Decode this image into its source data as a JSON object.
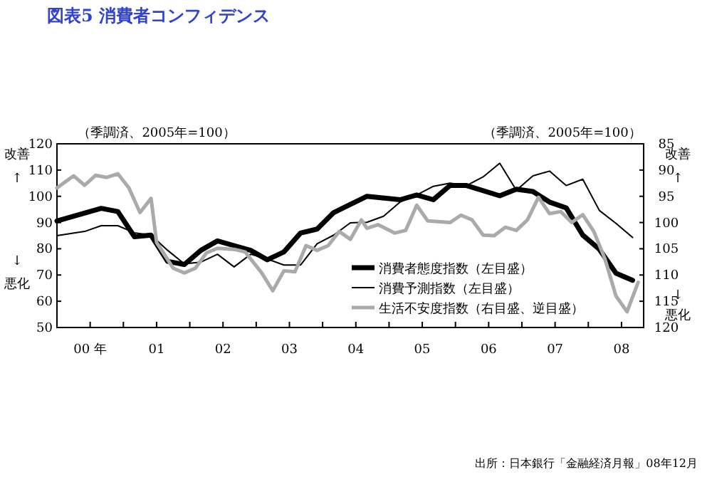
{
  "chart_data": {
    "type": "line",
    "title": "図表5 消費者コンフィデンス",
    "xlim": [
      "2000-01",
      "2008-11"
    ],
    "xticks": [
      {
        "value": "2000-07",
        "label": "00 年"
      },
      {
        "value": "2001-01",
        "label": null
      },
      {
        "value": "2001-07",
        "label": "01"
      },
      {
        "value": "2002-01",
        "label": null
      },
      {
        "value": "2002-07",
        "label": "02"
      },
      {
        "value": "2003-01",
        "label": null
      },
      {
        "value": "2003-07",
        "label": "03"
      },
      {
        "value": "2004-01",
        "label": null
      },
      {
        "value": "2004-07",
        "label": "04"
      },
      {
        "value": "2005-01",
        "label": null
      },
      {
        "value": "2005-07",
        "label": "05"
      },
      {
        "value": "2006-01",
        "label": null
      },
      {
        "value": "2006-07",
        "label": "06"
      },
      {
        "value": "2007-01",
        "label": null
      },
      {
        "value": "2007-07",
        "label": "07"
      },
      {
        "value": "2008-01",
        "label": null
      },
      {
        "value": "2008-07",
        "label": "08"
      }
    ],
    "ylim": [
      50,
      120
    ],
    "yticks": [
      50,
      60,
      70,
      80,
      90,
      100,
      110,
      120
    ],
    "y2lim": [
      120,
      85
    ],
    "y2ticks": [
      85,
      90,
      95,
      100,
      105,
      110,
      115,
      120
    ],
    "legend": "bottom right",
    "grid": false,
    "annotations": [
      "（季調済、2005年=100）",
      "（季調済、2005年=100）",
      "改善",
      "↑",
      "↓",
      "悪化",
      "改善",
      "↑",
      "↓",
      "悪化",
      "出所：日本銀行「金融経済月報」08年12月"
    ],
    "series": [
      {
        "name": "消費者態度指数（左目盛）",
        "color": "#000000",
        "x": [
          "2000-01",
          "2000-09",
          "2000-12",
          "2001-03",
          "2001-06",
          "2001-09",
          "2001-12",
          "2002-03",
          "2002-06",
          "2002-09",
          "2002-12",
          "2003-03",
          "2003-06",
          "2003-09",
          "2003-12",
          "2004-03",
          "2004-06",
          "2004-09",
          "2005-03",
          "2005-06",
          "2005-09",
          "2005-12",
          "2006-03",
          "2006-09",
          "2006-12",
          "2007-03",
          "2007-06",
          "2007-09",
          "2007-12",
          "2008-03",
          "2008-06",
          "2008-09"
        ],
        "values": [
          90.6,
          95.4,
          94.2,
          84.6,
          85.2,
          75.2,
          74,
          79.4,
          83,
          81.2,
          79.4,
          75.8,
          78.8,
          86,
          87.5,
          93.8,
          96.9,
          100,
          98.7,
          100.5,
          98.7,
          104.1,
          104.1,
          100.2,
          102.7,
          101.8,
          97.8,
          95.6,
          85.2,
          79.8,
          70.7,
          68
        ]
      },
      {
        "name": "消費予測指数（左目盛）",
        "color": "#000000",
        "x": [
          "2000-01",
          "2000-06",
          "2000-09",
          "2000-12",
          "2001-03",
          "2001-06",
          "2001-09",
          "2001-12",
          "2002-03",
          "2002-06",
          "2002-09",
          "2002-12",
          "2003-03",
          "2003-06",
          "2003-09",
          "2003-12",
          "2004-03",
          "2004-06",
          "2004-09",
          "2004-12",
          "2005-03",
          "2005-06",
          "2005-09",
          "2005-12",
          "2006-03",
          "2006-06",
          "2006-09",
          "2006-12",
          "2007-03",
          "2007-06",
          "2007-09",
          "2007-12",
          "2008-03",
          "2008-06",
          "2008-09"
        ],
        "values": [
          85,
          86.6,
          88.8,
          88.8,
          86.1,
          85.2,
          79.4,
          74.3,
          74.9,
          77.9,
          73.1,
          77.9,
          76.1,
          73.8,
          73.8,
          81.9,
          85.2,
          89.9,
          90.1,
          92.4,
          97.8,
          100.5,
          103.8,
          105,
          104.1,
          107.4,
          112.6,
          102.3,
          107.8,
          109.6,
          104.1,
          106.5,
          94.6,
          89.7,
          84.3
        ]
      },
      {
        "name": "生活不安度指数（右目盛、逆目盛）",
        "color": "#aaaaaa",
        "axis": "y2",
        "x": [
          "2000-01",
          "2000-04",
          "2000-06",
          "2000-08",
          "2000-10",
          "2000-12",
          "2001-02",
          "2001-04",
          "2001-06",
          "2001-07",
          "2001-10",
          "2001-12",
          "2002-02",
          "2002-04",
          "2002-06",
          "2002-09",
          "2002-11",
          "2003-02",
          "2003-04",
          "2003-06",
          "2003-08",
          "2003-10",
          "2003-12",
          "2004-02",
          "2004-04",
          "2004-06",
          "2004-08",
          "2004-09",
          "2004-11",
          "2005-02",
          "2005-04",
          "2005-06",
          "2005-08",
          "2005-12",
          "2006-02",
          "2006-04",
          "2006-06",
          "2006-08",
          "2006-10",
          "2006-12",
          "2007-02",
          "2007-04",
          "2007-06",
          "2007-08",
          "2007-10",
          "2007-12",
          "2008-02",
          "2008-04",
          "2008-06",
          "2008-08",
          "2008-10"
        ],
        "values": [
          93.4,
          91.1,
          92.9,
          91,
          91.4,
          90.7,
          93.4,
          98.1,
          95.4,
          103.8,
          108.7,
          109.6,
          108.7,
          105.8,
          104.9,
          105.1,
          105.6,
          109.6,
          113,
          109.2,
          109.4,
          104.4,
          105.3,
          104.4,
          101.7,
          103.2,
          99.5,
          101.1,
          100.4,
          102,
          101.5,
          96.7,
          99.7,
          100,
          98.6,
          99.5,
          102.4,
          102.5,
          100.9,
          101.5,
          99.5,
          95.2,
          98.3,
          97.9,
          100,
          98.5,
          101.7,
          106.9,
          114,
          117,
          111.4
        ]
      }
    ]
  }
}
